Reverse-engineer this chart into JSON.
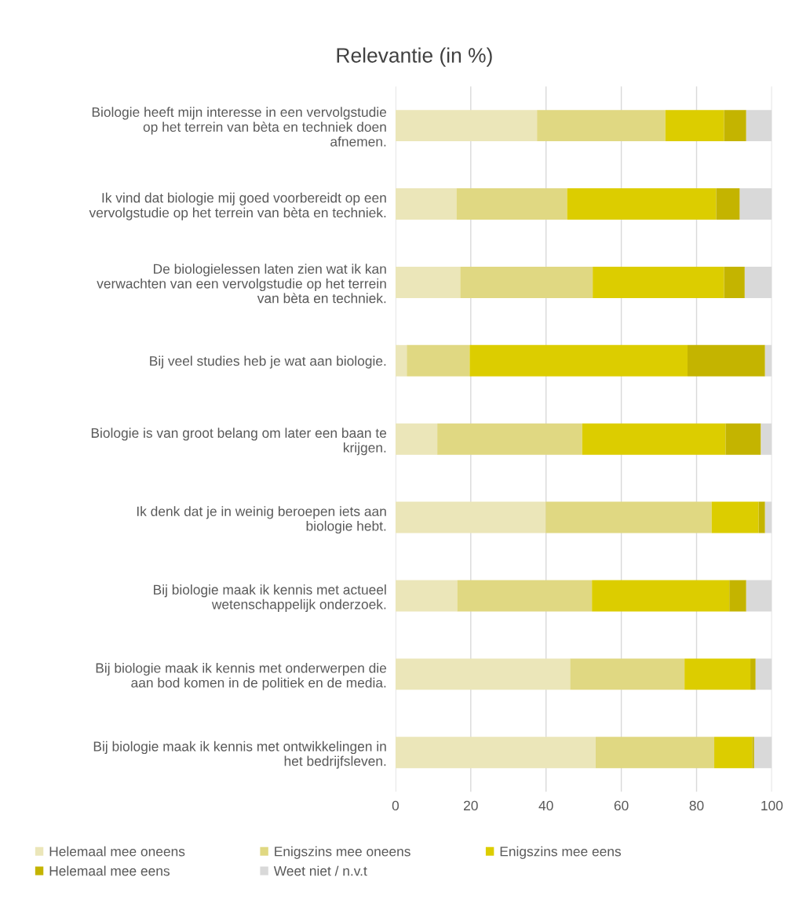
{
  "chart_data": {
    "type": "bar",
    "orientation": "horizontal",
    "stacked": true,
    "title": "Relevantie (in %)",
    "categories": [
      "Biologie heeft mijn interesse in een vervolgstudie\nop het terrein van bèta en techniek doen\nafnemen.",
      "Ik vind dat biologie mij goed voorbereidt op een\nvervolgstudie op het terrein van bèta en techniek.",
      "De biologielessen laten zien wat ik kan\nverwachten van een vervolgstudie op het terrein\nvan bèta en techniek.",
      "Bij veel studies heb je wat aan biologie.",
      "Biologie is van groot belang om later een baan te\nkrijgen.",
      "Ik denk dat je in weinig beroepen iets aan\nbiologie hebt.",
      "Bij biologie maak ik kennis met actueel\nwetenschappelijk onderzoek.",
      "Bij biologie maak ik kennis met onderwerpen die\naan bod komen in de politiek en de media.",
      "Bij biologie maak ik kennis met ontwikkelingen in\nhet bedrijfsleven."
    ],
    "series": [
      {
        "name": "Helemaal mee oneens",
        "color": "#ebe6b9",
        "values": [
          37.6,
          16.2,
          17.2,
          3.0,
          11.1,
          39.9,
          16.4,
          46.4,
          53.2
        ]
      },
      {
        "name": "Enigszins mee oneens",
        "color": "#e0d882",
        "values": [
          34.1,
          29.4,
          35.2,
          16.7,
          38.5,
          44.1,
          35.8,
          30.4,
          31.5
        ]
      },
      {
        "name": "Enigszins mee eens",
        "color": "#dccd00",
        "values": [
          15.6,
          39.6,
          34.9,
          57.9,
          38.1,
          12.5,
          36.5,
          17.5,
          10.1
        ]
      },
      {
        "name": "Helemaal mee eens",
        "color": "#c4b400",
        "values": [
          5.9,
          6.3,
          5.5,
          20.6,
          9.4,
          1.7,
          4.5,
          1.4,
          0.5
        ]
      },
      {
        "name": "Weet niet / n.v.t",
        "color": "#d9d9d9",
        "values": [
          6.8,
          8.5,
          7.2,
          1.8,
          2.9,
          1.8,
          6.8,
          4.3,
          4.7
        ]
      }
    ],
    "xlim": [
      0,
      100
    ],
    "xticks": [
      0,
      20,
      40,
      60,
      80,
      100
    ],
    "grid": "x",
    "legend": "bottom"
  }
}
